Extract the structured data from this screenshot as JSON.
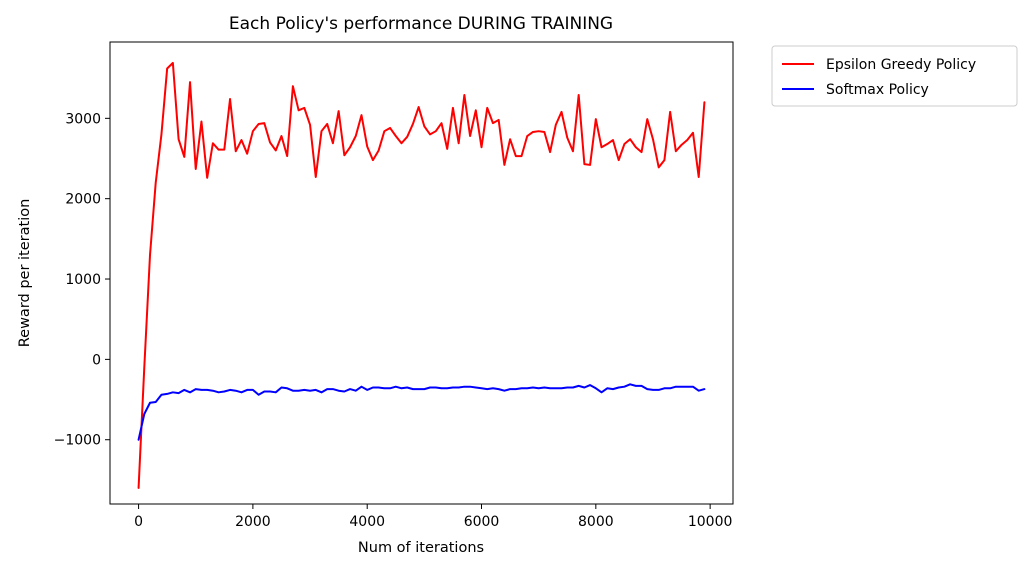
{
  "chart_data": {
    "type": "line",
    "title": "Each Policy's performance DURING TRAINING",
    "xlabel": "Num of iterations",
    "ylabel": "Reward per iteration",
    "xlim": [
      -500,
      10400
    ],
    "ylim": [
      -1800,
      3950
    ],
    "xticks": [
      0,
      2000,
      4000,
      6000,
      8000,
      10000
    ],
    "yticks": [
      -1000,
      0,
      1000,
      2000,
      3000
    ],
    "xtick_labels": [
      "0",
      "2000",
      "4000",
      "6000",
      "8000",
      "10000"
    ],
    "ytick_labels": [
      "−1000",
      "0",
      "1000",
      "2000",
      "3000"
    ],
    "grid": false,
    "legend": {
      "placement": "outside-top-right"
    },
    "x": [
      0,
      100,
      200,
      300,
      400,
      500,
      600,
      700,
      800,
      900,
      1000,
      1100,
      1200,
      1300,
      1400,
      1500,
      1600,
      1700,
      1800,
      1900,
      2000,
      2100,
      2200,
      2300,
      2400,
      2500,
      2600,
      2700,
      2800,
      2900,
      3000,
      3100,
      3200,
      3300,
      3400,
      3500,
      3600,
      3700,
      3800,
      3900,
      4000,
      4100,
      4200,
      4300,
      4400,
      4500,
      4600,
      4700,
      4800,
      4900,
      5000,
      5100,
      5200,
      5300,
      5400,
      5500,
      5600,
      5700,
      5800,
      5900,
      6000,
      6100,
      6200,
      6300,
      6400,
      6500,
      6600,
      6700,
      6800,
      6900,
      7000,
      7100,
      7200,
      7300,
      7400,
      7500,
      7600,
      7700,
      7800,
      7900,
      8000,
      8100,
      8200,
      8300,
      8400,
      8500,
      8600,
      8700,
      8800,
      8900,
      9000,
      9100,
      9200,
      9300,
      9400,
      9500,
      9600,
      9700,
      9800,
      9900
    ],
    "series": [
      {
        "name": "Epsilon Greedy Policy",
        "color": "#ff0000",
        "values": [
          -1600,
          -100,
          1300,
          2200,
          2800,
          3620,
          3690,
          2740,
          2520,
          3450,
          2370,
          2960,
          2260,
          2690,
          2610,
          2610,
          3240,
          2590,
          2730,
          2560,
          2840,
          2930,
          2940,
          2700,
          2600,
          2780,
          2530,
          3400,
          3100,
          3130,
          2920,
          2270,
          2840,
          2930,
          2690,
          3090,
          2540,
          2640,
          2780,
          3040,
          2650,
          2480,
          2600,
          2840,
          2880,
          2780,
          2690,
          2770,
          2930,
          3140,
          2900,
          2800,
          2840,
          2940,
          2620,
          3130,
          2690,
          3290,
          2780,
          3100,
          2640,
          3130,
          2940,
          2980,
          2420,
          2740,
          2530,
          2530,
          2780,
          2830,
          2840,
          2830,
          2580,
          2920,
          3080,
          2760,
          2590,
          3290,
          2430,
          2420,
          2990,
          2640,
          2680,
          2730,
          2480,
          2680,
          2740,
          2640,
          2580,
          2990,
          2740,
          2390,
          2480,
          3080,
          2590,
          2670,
          2730,
          2820,
          2270,
          3200
        ]
      },
      {
        "name": "Softmax Policy",
        "color": "#0000ff",
        "values": [
          -1000,
          -680,
          -540,
          -530,
          -440,
          -430,
          -410,
          -420,
          -380,
          -410,
          -370,
          -380,
          -380,
          -390,
          -410,
          -400,
          -380,
          -390,
          -410,
          -380,
          -380,
          -440,
          -400,
          -400,
          -410,
          -350,
          -360,
          -390,
          -390,
          -380,
          -390,
          -380,
          -410,
          -370,
          -370,
          -390,
          -400,
          -370,
          -390,
          -340,
          -380,
          -350,
          -350,
          -360,
          -360,
          -340,
          -360,
          -350,
          -370,
          -370,
          -370,
          -350,
          -350,
          -360,
          -360,
          -350,
          -350,
          -340,
          -340,
          -350,
          -360,
          -370,
          -360,
          -370,
          -390,
          -370,
          -370,
          -360,
          -360,
          -350,
          -360,
          -350,
          -360,
          -360,
          -360,
          -350,
          -350,
          -330,
          -350,
          -320,
          -360,
          -410,
          -360,
          -370,
          -350,
          -340,
          -310,
          -330,
          -330,
          -370,
          -380,
          -380,
          -360,
          -360,
          -340,
          -340,
          -340,
          -340,
          -390,
          -370
        ]
      }
    ]
  }
}
